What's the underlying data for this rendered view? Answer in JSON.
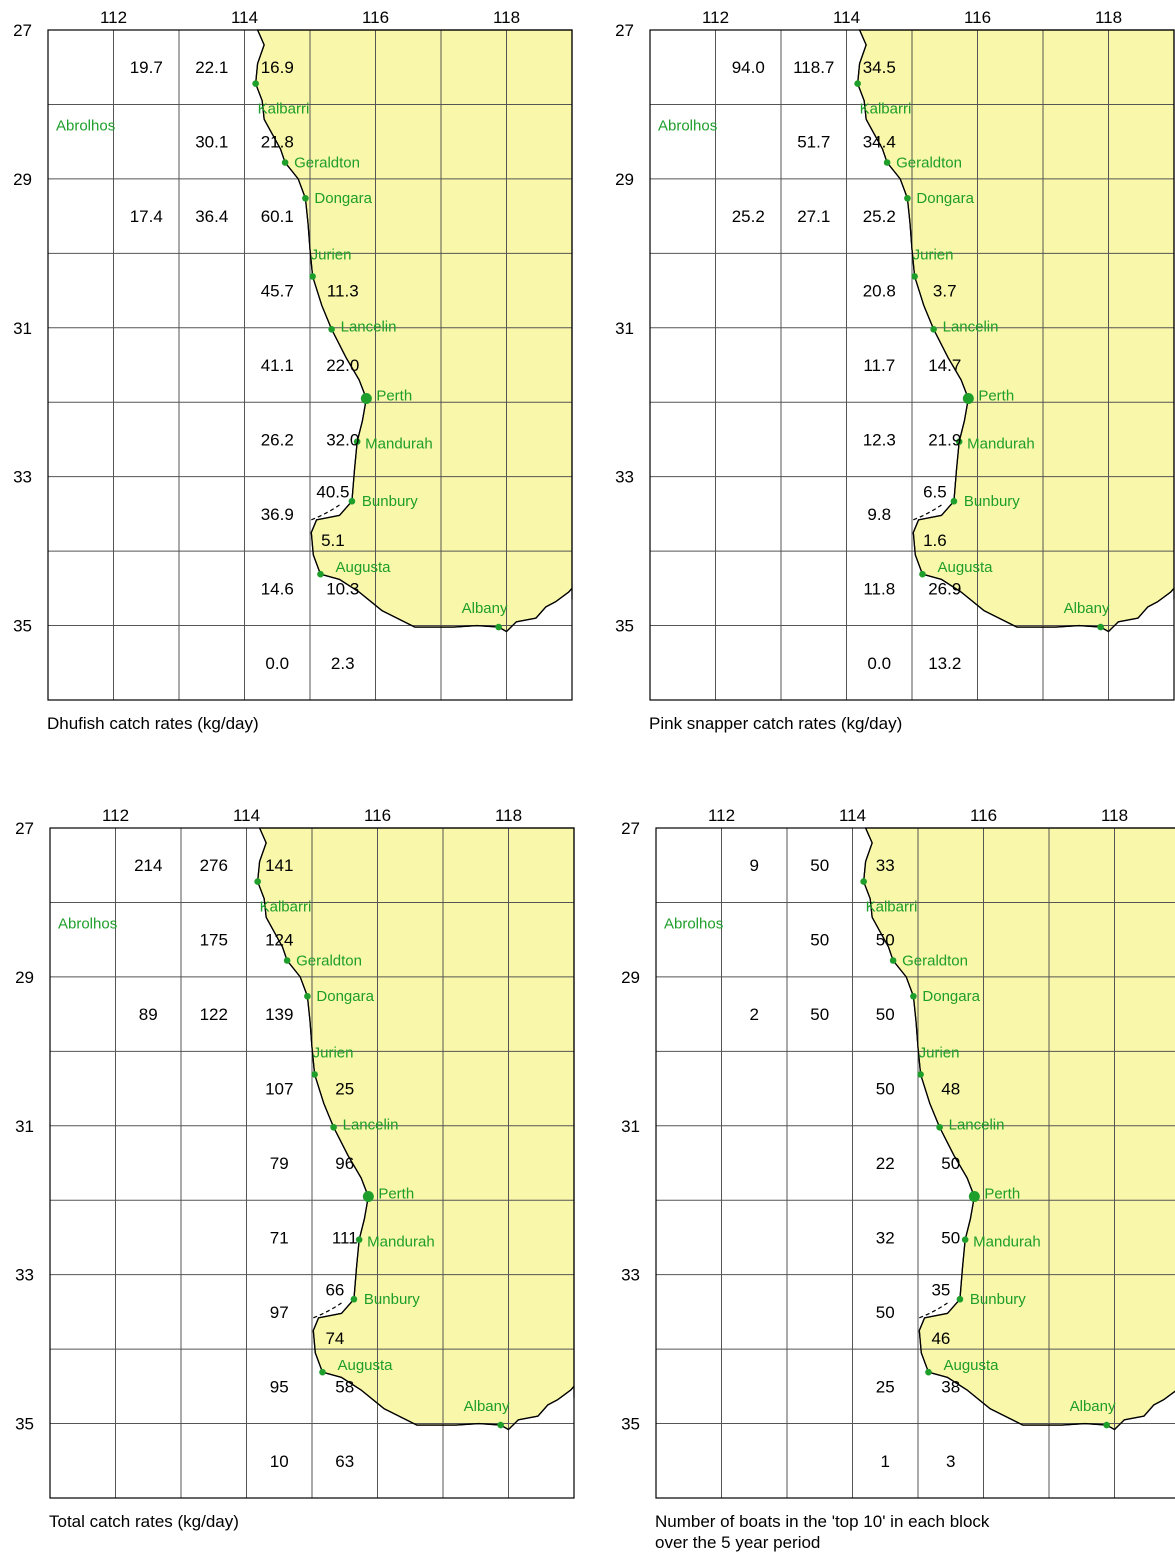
{
  "panels": [
    {
      "caption": [
        "Dhufish catch rates (kg/day)"
      ],
      "values": [
        {
          "lon": 112.5,
          "lat": 27.5,
          "v": "19.7"
        },
        {
          "lon": 113.5,
          "lat": 27.5,
          "v": "22.1"
        },
        {
          "lon": 114.5,
          "lat": 27.5,
          "v": "16.9"
        },
        {
          "lon": 113.5,
          "lat": 28.5,
          "v": "30.1"
        },
        {
          "lon": 114.5,
          "lat": 28.5,
          "v": "21.8"
        },
        {
          "lon": 112.5,
          "lat": 29.5,
          "v": "17.4"
        },
        {
          "lon": 113.5,
          "lat": 29.5,
          "v": "36.4"
        },
        {
          "lon": 114.5,
          "lat": 29.5,
          "v": "60.1"
        },
        {
          "lon": 114.5,
          "lat": 30.5,
          "v": "45.7"
        },
        {
          "lon": 115.5,
          "lat": 30.5,
          "v": "11.3"
        },
        {
          "lon": 114.5,
          "lat": 31.5,
          "v": "41.1"
        },
        {
          "lon": 115.5,
          "lat": 31.5,
          "v": "22.0"
        },
        {
          "lon": 114.5,
          "lat": 32.5,
          "v": "26.2"
        },
        {
          "lon": 115.5,
          "lat": 32.5,
          "v": "32.0"
        },
        {
          "lon": 115.35,
          "lat": 33.2,
          "v": "40.5"
        },
        {
          "lon": 114.5,
          "lat": 33.5,
          "v": "36.9"
        },
        {
          "lon": 115.35,
          "lat": 33.85,
          "v": "5.1"
        },
        {
          "lon": 114.5,
          "lat": 34.5,
          "v": "14.6"
        },
        {
          "lon": 115.5,
          "lat": 34.5,
          "v": "10.3"
        },
        {
          "lon": 114.5,
          "lat": 35.5,
          "v": "0.0"
        },
        {
          "lon": 115.5,
          "lat": 35.5,
          "v": "2.3"
        }
      ]
    },
    {
      "caption": [
        "Pink snapper catch rates (kg/day)"
      ],
      "values": [
        {
          "lon": 112.5,
          "lat": 27.5,
          "v": "94.0"
        },
        {
          "lon": 113.5,
          "lat": 27.5,
          "v": "118.7"
        },
        {
          "lon": 114.5,
          "lat": 27.5,
          "v": "34.5"
        },
        {
          "lon": 113.5,
          "lat": 28.5,
          "v": "51.7"
        },
        {
          "lon": 114.5,
          "lat": 28.5,
          "v": "34.4"
        },
        {
          "lon": 112.5,
          "lat": 29.5,
          "v": "25.2"
        },
        {
          "lon": 113.5,
          "lat": 29.5,
          "v": "27.1"
        },
        {
          "lon": 114.5,
          "lat": 29.5,
          "v": "25.2"
        },
        {
          "lon": 114.5,
          "lat": 30.5,
          "v": "20.8"
        },
        {
          "lon": 115.5,
          "lat": 30.5,
          "v": "3.7"
        },
        {
          "lon": 114.5,
          "lat": 31.5,
          "v": "11.7"
        },
        {
          "lon": 115.5,
          "lat": 31.5,
          "v": "14.7"
        },
        {
          "lon": 114.5,
          "lat": 32.5,
          "v": "12.3"
        },
        {
          "lon": 115.5,
          "lat": 32.5,
          "v": "21.9"
        },
        {
          "lon": 115.35,
          "lat": 33.2,
          "v": "6.5"
        },
        {
          "lon": 114.5,
          "lat": 33.5,
          "v": "9.8"
        },
        {
          "lon": 115.35,
          "lat": 33.85,
          "v": "1.6"
        },
        {
          "lon": 114.5,
          "lat": 34.5,
          "v": "11.8"
        },
        {
          "lon": 115.5,
          "lat": 34.5,
          "v": "26.9"
        },
        {
          "lon": 114.5,
          "lat": 35.5,
          "v": "0.0"
        },
        {
          "lon": 115.5,
          "lat": 35.5,
          "v": "13.2"
        }
      ]
    },
    {
      "caption": [
        "Total catch rates (kg/day)"
      ],
      "values": [
        {
          "lon": 112.5,
          "lat": 27.5,
          "v": "214"
        },
        {
          "lon": 113.5,
          "lat": 27.5,
          "v": "276"
        },
        {
          "lon": 114.5,
          "lat": 27.5,
          "v": "141"
        },
        {
          "lon": 113.5,
          "lat": 28.5,
          "v": "175"
        },
        {
          "lon": 114.5,
          "lat": 28.5,
          "v": "124"
        },
        {
          "lon": 112.5,
          "lat": 29.5,
          "v": "89"
        },
        {
          "lon": 113.5,
          "lat": 29.5,
          "v": "122"
        },
        {
          "lon": 114.5,
          "lat": 29.5,
          "v": "139"
        },
        {
          "lon": 114.5,
          "lat": 30.5,
          "v": "107"
        },
        {
          "lon": 115.5,
          "lat": 30.5,
          "v": "25"
        },
        {
          "lon": 114.5,
          "lat": 31.5,
          "v": "79"
        },
        {
          "lon": 115.5,
          "lat": 31.5,
          "v": "96"
        },
        {
          "lon": 114.5,
          "lat": 32.5,
          "v": "71"
        },
        {
          "lon": 115.5,
          "lat": 32.5,
          "v": "111"
        },
        {
          "lon": 115.35,
          "lat": 33.2,
          "v": "66"
        },
        {
          "lon": 114.5,
          "lat": 33.5,
          "v": "97"
        },
        {
          "lon": 115.35,
          "lat": 33.85,
          "v": "74"
        },
        {
          "lon": 114.5,
          "lat": 34.5,
          "v": "95"
        },
        {
          "lon": 115.5,
          "lat": 34.5,
          "v": "58"
        },
        {
          "lon": 114.5,
          "lat": 35.5,
          "v": "10"
        },
        {
          "lon": 115.5,
          "lat": 35.5,
          "v": "63"
        }
      ]
    },
    {
      "caption": [
        "Number of boats in the 'top 10' in each block",
        " over the 5 year period"
      ],
      "values": [
        {
          "lon": 112.5,
          "lat": 27.5,
          "v": "9"
        },
        {
          "lon": 113.5,
          "lat": 27.5,
          "v": "50"
        },
        {
          "lon": 114.5,
          "lat": 27.5,
          "v": "33"
        },
        {
          "lon": 113.5,
          "lat": 28.5,
          "v": "50"
        },
        {
          "lon": 114.5,
          "lat": 28.5,
          "v": "50"
        },
        {
          "lon": 112.5,
          "lat": 29.5,
          "v": "2"
        },
        {
          "lon": 113.5,
          "lat": 29.5,
          "v": "50"
        },
        {
          "lon": 114.5,
          "lat": 29.5,
          "v": "50"
        },
        {
          "lon": 114.5,
          "lat": 30.5,
          "v": "50"
        },
        {
          "lon": 115.5,
          "lat": 30.5,
          "v": "48"
        },
        {
          "lon": 114.5,
          "lat": 31.5,
          "v": "22"
        },
        {
          "lon": 115.5,
          "lat": 31.5,
          "v": "50"
        },
        {
          "lon": 114.5,
          "lat": 32.5,
          "v": "32"
        },
        {
          "lon": 115.5,
          "lat": 32.5,
          "v": "50"
        },
        {
          "lon": 115.35,
          "lat": 33.2,
          "v": "35"
        },
        {
          "lon": 114.5,
          "lat": 33.5,
          "v": "50"
        },
        {
          "lon": 115.35,
          "lat": 33.85,
          "v": "46"
        },
        {
          "lon": 114.5,
          "lat": 34.5,
          "v": "25"
        },
        {
          "lon": 115.5,
          "lat": 34.5,
          "v": "38"
        },
        {
          "lon": 114.5,
          "lat": 35.5,
          "v": "1"
        },
        {
          "lon": 115.5,
          "lat": 35.5,
          "v": "3"
        }
      ]
    }
  ],
  "lon_ticks": [
    "112",
    "114",
    "116",
    "118"
  ],
  "lat_ticks": [
    "27",
    "29",
    "31",
    "33",
    "35"
  ],
  "towns": [
    {
      "name": "Kalbarri",
      "lon": 114.17,
      "lat": 27.72,
      "big": false
    },
    {
      "name": "Abrolhos",
      "lon": null,
      "lat": null,
      "big": false
    },
    {
      "name": "Geraldton",
      "lon": 114.62,
      "lat": 28.78,
      "big": false
    },
    {
      "name": "Dongara",
      "lon": 114.93,
      "lat": 29.26,
      "big": false
    },
    {
      "name": "Jurien",
      "lon": 115.04,
      "lat": 30.31,
      "big": false
    },
    {
      "name": "Lancelin",
      "lon": 115.33,
      "lat": 31.02,
      "big": false
    },
    {
      "name": "Perth",
      "lon": 115.86,
      "lat": 31.95,
      "big": true
    },
    {
      "name": "Mandurah",
      "lon": 115.72,
      "lat": 32.53,
      "big": false
    },
    {
      "name": "Bunbury",
      "lon": 115.64,
      "lat": 33.33,
      "big": false
    },
    {
      "name": "Augusta",
      "lon": 115.16,
      "lat": 34.31,
      "big": false
    },
    {
      "name": "Albany",
      "lon": 117.88,
      "lat": 35.02,
      "big": false
    }
  ],
  "colors": {
    "land": "#f9f7a9",
    "town": "#1e9e2a"
  }
}
